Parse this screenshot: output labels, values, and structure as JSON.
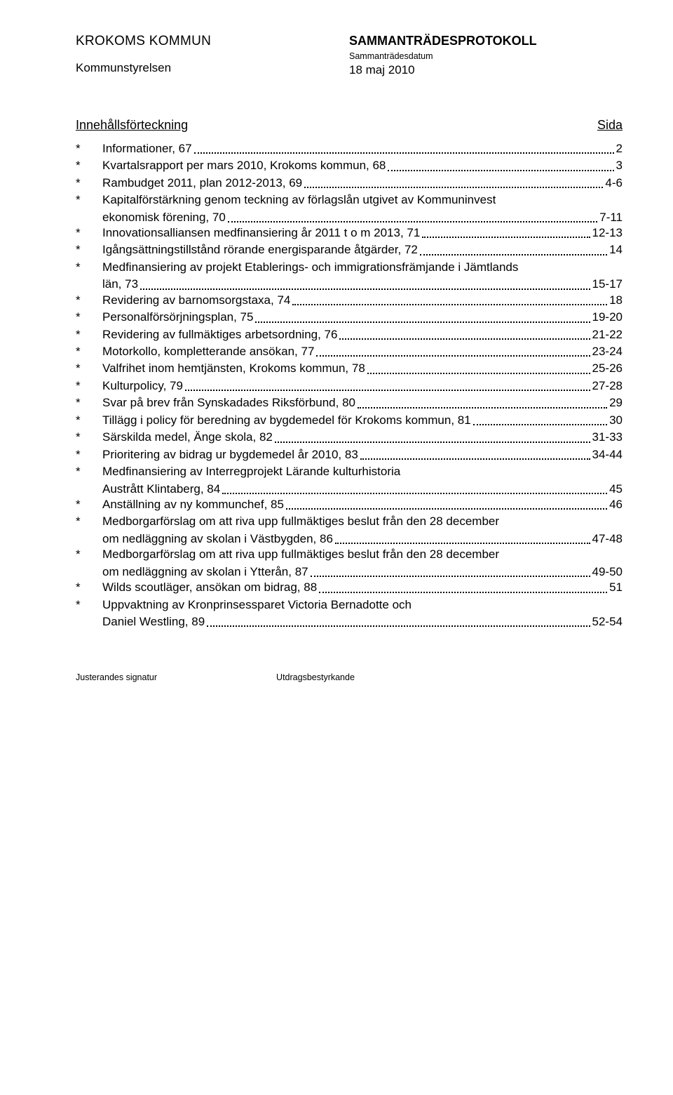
{
  "header": {
    "org": "KROKOMS KOMMUN",
    "protocol_title": "SAMMANTRÄDESPROTOKOLL",
    "subtitle": "Sammanträdesdatum",
    "department": "Kommunstyrelsen",
    "date": "18 maj 2010"
  },
  "toc": {
    "title": "Innehållsförteckning",
    "page_label": "Sida",
    "bullet": "*",
    "items": [
      {
        "text": "Informationer, 67",
        "page": "2"
      },
      {
        "text": "Kvartalsrapport per mars 2010, Krokoms kommun, 68",
        "page": "3"
      },
      {
        "text": "Rambudget 2011, plan 2012-2013, 69",
        "page": "4-6"
      },
      {
        "text": "Kapitalförstärkning genom teckning av förlagslån utgivet av Kommuninvest",
        "cont": "ekonomisk förening, 70",
        "page": "7-11"
      },
      {
        "text": "Innovationsalliansen medfinansiering år 2011 t o m 2013, 71",
        "page": "12-13"
      },
      {
        "text": "Igångsättningstillstånd rörande energisparande åtgärder, 72",
        "page": "14"
      },
      {
        "text": "Medfinansiering av projekt Etablerings- och immigrationsfrämjande i Jämtlands",
        "cont": "län, 73",
        "page": "15-17"
      },
      {
        "text": "Revidering av barnomsorgstaxa, 74",
        "page": "18"
      },
      {
        "text": "Personalförsörjningsplan, 75",
        "page": "19-20"
      },
      {
        "text": "Revidering av fullmäktiges arbetsordning, 76",
        "page": "21-22"
      },
      {
        "text": "Motorkollo, kompletterande ansökan, 77",
        "page": "23-24"
      },
      {
        "text": "Valfrihet inom hemtjänsten, Krokoms kommun, 78",
        "page": "25-26"
      },
      {
        "text": "Kulturpolicy, 79",
        "page": "27-28"
      },
      {
        "text": "Svar på brev från Synskadades Riksförbund, 80",
        "page": "29"
      },
      {
        "text": "Tillägg i policy för beredning av bygdemedel för Krokoms kommun, 81",
        "page": "30"
      },
      {
        "text": "Särskilda medel, Änge skola, 82",
        "page": "31-33"
      },
      {
        "text": "Prioritering av bidrag ur bygdemedel år 2010, 83",
        "page": "34-44"
      },
      {
        "text": "Medfinansiering av Interregprojekt Lärande kulturhistoria",
        "cont": "Austrått Klintaberg, 84",
        "page": "45"
      },
      {
        "text": "Anställning av ny kommunchef, 85",
        "page": "46"
      },
      {
        "text": "Medborgarförslag om att riva upp fullmäktiges beslut från den 28 december",
        "cont": "om nedläggning av skolan i Västbygden, 86",
        "page": "47-48"
      },
      {
        "text": "Medborgarförslag om att riva upp fullmäktiges beslut från den 28 december",
        "cont": "om nedläggning av skolan i Ytterån, 87",
        "page": "49-50"
      },
      {
        "text": "Wilds scoutläger, ansökan om bidrag, 88",
        "page": "51"
      },
      {
        "text": "Uppvaktning av Kronprinsessparet Victoria Bernadotte och",
        "cont": "Daniel Westling, 89",
        "page": "52-54"
      }
    ]
  },
  "footer": {
    "left": "Justerandes signatur",
    "right": "Utdragsbestyrkande"
  }
}
